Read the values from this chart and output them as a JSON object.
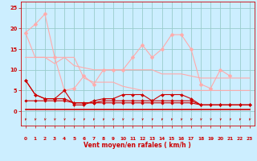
{
  "x": [
    0,
    1,
    2,
    3,
    4,
    5,
    6,
    7,
    8,
    9,
    10,
    11,
    12,
    13,
    14,
    15,
    16,
    17,
    18,
    19,
    20,
    21,
    22,
    23
  ],
  "series": [
    {
      "name": "rafales_peak",
      "color": "#ffaaaa",
      "linewidth": 0.8,
      "marker": "D",
      "markersize": 2.5,
      "values": [
        19,
        21,
        23.5,
        13,
        5,
        5.5,
        8.5,
        6.5,
        10,
        10,
        10,
        13,
        16,
        13,
        15,
        18.5,
        18.5,
        15,
        6.5,
        5.5,
        10,
        8.5,
        null,
        null
      ]
    },
    {
      "name": "rafales_smooth",
      "color": "#ffaaaa",
      "linewidth": 0.8,
      "marker": null,
      "markersize": 0,
      "values": [
        19,
        13,
        13,
        13,
        13,
        11,
        10.5,
        10,
        10,
        10,
        10,
        10,
        10,
        10,
        9,
        9,
        9,
        8.5,
        8,
        8,
        8,
        8,
        8,
        8
      ]
    },
    {
      "name": "vent_smooth",
      "color": "#ffaaaa",
      "linewidth": 0.8,
      "marker": null,
      "markersize": 0,
      "values": [
        13,
        13,
        13,
        11.5,
        13,
        13,
        8,
        7,
        7,
        7,
        6,
        5.5,
        5,
        5,
        5,
        5,
        5,
        5,
        5,
        5,
        5,
        5,
        5,
        5
      ]
    },
    {
      "name": "rafales_dark",
      "color": "#cc0000",
      "linewidth": 0.8,
      "marker": "D",
      "markersize": 2.0,
      "values": [
        7.5,
        4,
        3,
        3,
        5,
        1.5,
        1.5,
        2.5,
        3,
        3,
        4,
        4,
        4,
        2.5,
        4,
        4,
        4,
        3,
        1.5,
        1.5,
        1.5,
        1.5,
        1.5,
        1.5
      ]
    },
    {
      "name": "vent_dark",
      "color": "#cc0000",
      "linewidth": 0.8,
      "marker": "D",
      "markersize": 2.0,
      "values": [
        7.5,
        4,
        3,
        3,
        3,
        2,
        2,
        2,
        2.5,
        2.5,
        2.5,
        2.5,
        2.5,
        2.5,
        2.5,
        2.5,
        2.5,
        2.5,
        1.5,
        1.5,
        1.5,
        1.5,
        1.5,
        1.5
      ]
    },
    {
      "name": "vent_flat",
      "color": "#cc0000",
      "linewidth": 0.8,
      "marker": "D",
      "markersize": 1.8,
      "values": [
        2.5,
        2.5,
        2.5,
        2.5,
        2.5,
        2,
        2,
        2,
        2,
        2,
        2,
        2,
        2,
        2,
        2,
        2,
        2,
        2,
        1.5,
        1.5,
        1.5,
        1.5,
        1.5,
        1.5
      ]
    },
    {
      "name": "zero_line",
      "color": "#cc0000",
      "linewidth": 1.2,
      "marker": null,
      "markersize": 0,
      "values": [
        0.3,
        0.3,
        0.3,
        0.3,
        0.3,
        0.3,
        0.3,
        0.3,
        0.3,
        0.3,
        0.3,
        0.3,
        0.3,
        0.3,
        0.3,
        0.3,
        0.3,
        0.3,
        0.3,
        0.3,
        0.3,
        0.3,
        0.3,
        0.3
      ]
    }
  ],
  "xlim": [
    -0.5,
    23.5
  ],
  "ylim": [
    -3.5,
    26.5
  ],
  "yticks": [
    0,
    5,
    10,
    15,
    20,
    25
  ],
  "xticks": [
    0,
    1,
    2,
    3,
    4,
    5,
    6,
    7,
    8,
    9,
    10,
    11,
    12,
    13,
    14,
    15,
    16,
    17,
    18,
    19,
    20,
    21,
    22,
    23
  ],
  "xlabel": "Vent moyen/en rafales ( km/h )",
  "background_color": "#cceeff",
  "grid_color": "#99cccc",
  "tick_color": "#cc0000",
  "label_color": "#cc0000"
}
